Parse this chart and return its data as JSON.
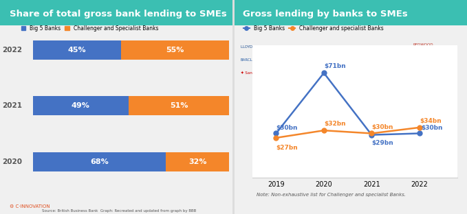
{
  "left_title": "Share of total gross bank lending to SMEs",
  "left_title_bg": "#3bbfb2",
  "left_title_color": "white",
  "bar_years": [
    "2022",
    "2021",
    "2020"
  ],
  "big5_pct": [
    45,
    49,
    68
  ],
  "challenger_pct": [
    55,
    51,
    32
  ],
  "big5_color": "#4472c4",
  "challenger_color": "#f4862a",
  "bar_bg": "#f5f5f5",
  "right_title": "Gross lending by banks to SMEs",
  "right_title_bg": "#3bbfb2",
  "right_title_color": "white",
  "years": [
    2019,
    2020,
    2021,
    2022
  ],
  "big5_values": [
    30,
    71,
    29,
    30
  ],
  "challenger_values": [
    27,
    32,
    30,
    34
  ],
  "big5_labels": [
    "$30bn",
    "$71bn",
    "$29bn",
    "$30bn"
  ],
  "challenger_labels": [
    "$27bn",
    "$32bn",
    "$30bn",
    "$34bn"
  ],
  "line_big5_color": "#4472c4",
  "line_challenger_color": "#f4862a",
  "note_text": "Note: Non-exhaustive list for Challenger and specialist Banks.",
  "source_text": "Source: British Business Bank  Graph: Recreated and updated from graph by BBB",
  "legend_big5": "Big 5 Banks",
  "legend_challenger": "Challenger and Specialist Banks",
  "legend_challenger_right": "Challenger and specialist Banks"
}
